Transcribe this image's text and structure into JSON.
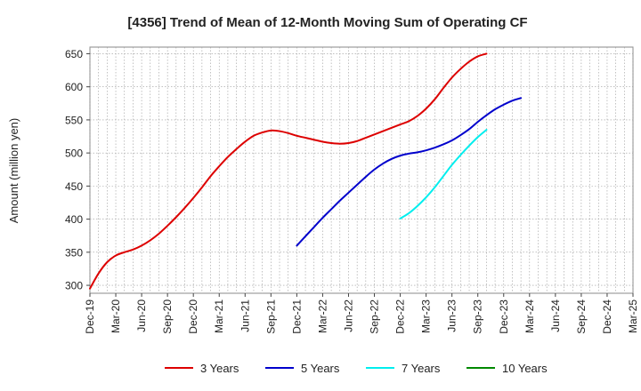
{
  "chart_data": {
    "type": "line",
    "title": "[4356]  Trend of Mean of 12-Month Moving Sum of Operating CF",
    "xlabel": "",
    "ylabel": "Amount (million yen)",
    "ylim": [
      288,
      660
    ],
    "yticks": [
      300,
      350,
      400,
      450,
      500,
      550,
      600,
      650
    ],
    "grid": true,
    "legend_position": "bottom",
    "x_tick_labels": [
      "Dec-19",
      "Mar-20",
      "Jun-20",
      "Sep-20",
      "Dec-20",
      "Mar-21",
      "Jun-21",
      "Sep-21",
      "Dec-21",
      "Mar-22",
      "Jun-22",
      "Sep-22",
      "Dec-22",
      "Mar-23",
      "Jun-23",
      "Sep-23",
      "Dec-23",
      "Mar-24",
      "Jun-24",
      "Sep-24",
      "Dec-24",
      "Mar-25"
    ],
    "series": [
      {
        "name": "3 Years",
        "color": "#dd0000",
        "start_index": 0,
        "values": [
          295,
          318,
          335,
          345,
          350,
          354,
          360,
          368,
          378,
          390,
          403,
          417,
          432,
          448,
          465,
          480,
          494,
          506,
          517,
          526,
          531,
          534,
          533,
          530,
          526,
          523,
          520,
          517,
          515,
          514,
          515,
          518,
          523,
          528,
          533,
          538,
          543,
          548,
          556,
          567,
          581,
          598,
          614,
          627,
          638,
          646,
          650
        ]
      },
      {
        "name": "5 Years",
        "color": "#0000cc",
        "start_index": 24,
        "values": [
          360,
          374,
          388,
          402,
          415,
          428,
          440,
          452,
          464,
          475,
          484,
          491,
          496,
          499,
          501,
          504,
          508,
          513,
          519,
          527,
          536,
          547,
          557,
          566,
          573,
          579,
          583
        ]
      },
      {
        "name": "7 Years",
        "color": "#00eeee",
        "start_index": 36,
        "values": [
          401,
          409,
          420,
          433,
          448,
          465,
          482,
          497,
          511,
          524,
          535
        ]
      },
      {
        "name": "10 Years",
        "color": "#008800",
        "start_index": 0,
        "values": []
      }
    ]
  }
}
